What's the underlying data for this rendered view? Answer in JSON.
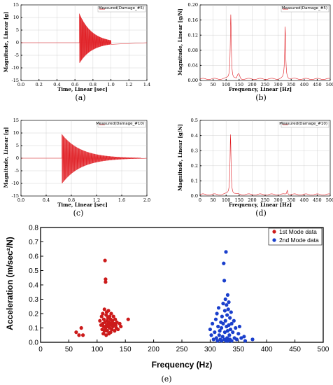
{
  "chart_data": [
    {
      "id": "a",
      "type": "line",
      "caption": "(a)",
      "xlabel": "Time, Linear [sec]",
      "ylabel": "Magnitude, Linear [g]",
      "xlim": [
        0,
        1.4
      ],
      "ylim": [
        -15,
        15
      ],
      "xticks": [
        "0.0",
        "0.2",
        "0.4",
        "0.6",
        "0.8",
        "1.0",
        "1.2",
        "1.4"
      ],
      "yticks": [
        "-15",
        "-10",
        "-5",
        "0",
        "5",
        "10",
        "15"
      ],
      "legend": "Measured(Damage_#5)",
      "legend_position": "top-right",
      "grid": true,
      "color": "#e0191f",
      "signal": {
        "onset": 0.65,
        "peak_pos": 11.5,
        "peak_neg": -8,
        "decay": 0.14,
        "end": 1.0
      }
    },
    {
      "id": "b",
      "type": "line",
      "caption": "(b)",
      "xlabel": "Frequency, Linear [Hz]",
      "ylabel": "Magnitude, Linear [g/N]",
      "xlim": [
        0,
        500
      ],
      "ylim": [
        0,
        0.2
      ],
      "xticks": [
        "0",
        "50",
        "100",
        "150",
        "200",
        "250",
        "300",
        "350",
        "400",
        "450",
        "500"
      ],
      "yticks": [
        "0.00",
        "0.04",
        "0.08",
        "0.12",
        "0.16",
        "0.20"
      ],
      "legend": "Measured(Damage_#5)",
      "legend_position": "top-right",
      "grid": true,
      "color": "#e0191f",
      "peaks": [
        {
          "f": 118,
          "a": 0.172
        },
        {
          "f": 327,
          "a": 0.138
        }
      ]
    },
    {
      "id": "c",
      "type": "line",
      "caption": "(c)",
      "xlabel": "Time, Linear [sec]",
      "ylabel": "Magnitude, Linear [g]",
      "xlim": [
        0,
        2.0
      ],
      "ylim": [
        -15,
        15
      ],
      "xticks": [
        "0.0",
        "0.4",
        "0.8",
        "1.2",
        "1.6",
        "2.0"
      ],
      "yticks": [
        "-15",
        "-10",
        "-5",
        "0",
        "5",
        "10",
        "15"
      ],
      "legend": "Measured(Damage_#10)",
      "legend_position": "top-right",
      "grid": true,
      "color": "#e0191f",
      "signal": {
        "onset": 0.65,
        "peak_pos": 9.5,
        "peak_neg": -10,
        "decay": 0.3,
        "end": 1.9
      }
    },
    {
      "id": "d",
      "type": "line",
      "caption": "(d)",
      "xlabel": "Frequency, Linear [Hz]",
      "ylabel": "Magnitude, Linear [g/N]",
      "xlim": [
        0,
        500
      ],
      "ylim": [
        0,
        0.5
      ],
      "xticks": [
        "0",
        "50",
        "100",
        "150",
        "200",
        "250",
        "300",
        "350",
        "400",
        "450",
        "500"
      ],
      "yticks": [
        "0.0",
        "0.1",
        "0.2",
        "0.3",
        "0.4",
        "0.5"
      ],
      "legend": "Measured(Damage_#10)",
      "legend_position": "top-right",
      "grid": true,
      "color": "#e0191f",
      "peaks": [
        {
          "f": 117,
          "a": 0.4
        },
        {
          "f": 335,
          "a": 0.03
        }
      ]
    },
    {
      "id": "e",
      "type": "scatter",
      "caption": "(e)",
      "xlabel": "Frequency (Hz)",
      "ylabel": "Acceleration (m/sec²/N)",
      "xlim": [
        0,
        500
      ],
      "ylim": [
        0,
        0.8
      ],
      "xticks": [
        "0",
        "50",
        "100",
        "150",
        "200",
        "250",
        "300",
        "350",
        "400",
        "450",
        "500"
      ],
      "yticks": [
        "0.0",
        "0.1",
        "0.2",
        "0.3",
        "0.4",
        "0.5",
        "0.6",
        "0.7",
        "0.8"
      ],
      "legend_position": "top-right",
      "grid": false,
      "series": [
        {
          "name": "1st Mode data",
          "color": "#cc1a1a",
          "points": [
            [
              63,
              0.07
            ],
            [
              68,
              0.05
            ],
            [
              72,
              0.1
            ],
            [
              75,
              0.05
            ],
            [
              105,
              0.15
            ],
            [
              107,
              0.12
            ],
            [
              108,
              0.18
            ],
            [
              109,
              0.09
            ],
            [
              110,
              0.2
            ],
            [
              110,
              0.13
            ],
            [
              111,
              0.06
            ],
            [
              112,
              0.11
            ],
            [
              112,
              0.16
            ],
            [
              113,
              0.23
            ],
            [
              113,
              0.08
            ],
            [
              114,
              0.57
            ],
            [
              114,
              0.14
            ],
            [
              115,
              0.42
            ],
            [
              115,
              0.44
            ],
            [
              115,
              0.1
            ],
            [
              116,
              0.19
            ],
            [
              116,
              0.05
            ],
            [
              117,
              0.12
            ],
            [
              117,
              0.21
            ],
            [
              118,
              0.15
            ],
            [
              118,
              0.08
            ],
            [
              119,
              0.17
            ],
            [
              119,
              0.11
            ],
            [
              120,
              0.13
            ],
            [
              120,
              0.22
            ],
            [
              121,
              0.06
            ],
            [
              121,
              0.14
            ],
            [
              122,
              0.18
            ],
            [
              122,
              0.1
            ],
            [
              123,
              0.12
            ],
            [
              124,
              0.16
            ],
            [
              124,
              0.07
            ],
            [
              125,
              0.2
            ],
            [
              125,
              0.13
            ],
            [
              126,
              0.09
            ],
            [
              127,
              0.15
            ],
            [
              128,
              0.11
            ],
            [
              129,
              0.18
            ],
            [
              130,
              0.13
            ],
            [
              131,
              0.08
            ],
            [
              132,
              0.16
            ],
            [
              133,
              0.12
            ],
            [
              134,
              0.1
            ],
            [
              135,
              0.14
            ],
            [
              137,
              0.09
            ],
            [
              140,
              0.13
            ],
            [
              142,
              0.11
            ],
            [
              155,
              0.16
            ]
          ]
        },
        {
          "name": "2nd Mode data",
          "color": "#1a3fcc",
          "points": [
            [
              300,
              0.09
            ],
            [
              302,
              0.05
            ],
            [
              304,
              0.13
            ],
            [
              306,
              0.02
            ],
            [
              308,
              0.07
            ],
            [
              310,
              0.16
            ],
            [
              311,
              0.03
            ],
            [
              312,
              0.2
            ],
            [
              313,
              0.01
            ],
            [
              314,
              0.11
            ],
            [
              315,
              0.24
            ],
            [
              316,
              0.05
            ],
            [
              317,
              0.08
            ],
            [
              318,
              0.02
            ],
            [
              319,
              0.14
            ],
            [
              320,
              0.01
            ],
            [
              320,
              0.1
            ],
            [
              321,
              0.18
            ],
            [
              322,
              0.04
            ],
            [
              323,
              0.27
            ],
            [
              323,
              0.13
            ],
            [
              324,
              0.55
            ],
            [
              325,
              0.02
            ],
            [
              325,
              0.43
            ],
            [
              326,
              0.07
            ],
            [
              326,
              0.22
            ],
            [
              327,
              0.3
            ],
            [
              327,
              0.15
            ],
            [
              328,
              0.01
            ],
            [
              328,
              0.63
            ],
            [
              329,
              0.11
            ],
            [
              329,
              0.26
            ],
            [
              330,
              0.03
            ],
            [
              330,
              0.19
            ],
            [
              331,
              0.33
            ],
            [
              331,
              0.08
            ],
            [
              332,
              0.23
            ],
            [
              332,
              0.01
            ],
            [
              333,
              0.12
            ],
            [
              333,
              0.28
            ],
            [
              334,
              0.05
            ],
            [
              335,
              0.17
            ],
            [
              335,
              0.02
            ],
            [
              336,
              0.09
            ],
            [
              337,
              0.21
            ],
            [
              338,
              0.13
            ],
            [
              338,
              0.01
            ],
            [
              340,
              0.07
            ],
            [
              342,
              0.15
            ],
            [
              343,
              0.03
            ],
            [
              345,
              0.1
            ],
            [
              347,
              0.02
            ],
            [
              350,
              0.06
            ],
            [
              352,
              0.11
            ],
            [
              355,
              0.03
            ],
            [
              360,
              0.04
            ],
            [
              362,
              0.01
            ],
            [
              375,
              0.02
            ]
          ]
        }
      ]
    }
  ]
}
